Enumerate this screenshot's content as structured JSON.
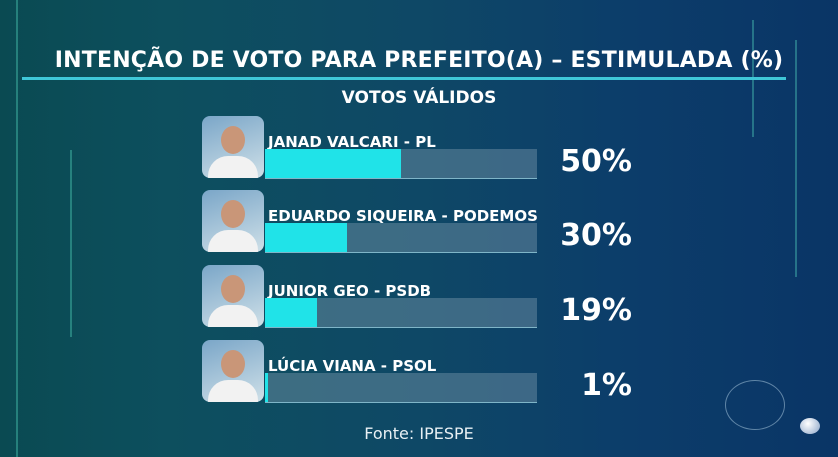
{
  "chart_data": {
    "type": "bar",
    "orientation": "horizontal",
    "title": "INTENÇÃO DE VOTO PARA PREFEITO(A) – ESTIMULADA (%)",
    "subtitle": "VOTOS VÁLIDOS",
    "xlim": [
      0,
      100
    ],
    "categories": [
      "JANAD VALCARI - PL",
      "EDUARDO SIQUEIRA - PODEMOS",
      "JUNIOR GEO - PSDB",
      "LÚCIA VIANA - PSOL"
    ],
    "values": [
      50,
      30,
      19,
      1
    ],
    "labels": [
      "50%",
      "30%",
      "19%",
      "1%"
    ],
    "source": "Fonte: IPESPE"
  },
  "colors": {
    "bar": "#20e3e8",
    "track": "#5f8496",
    "rule": "#3fc7d8"
  }
}
